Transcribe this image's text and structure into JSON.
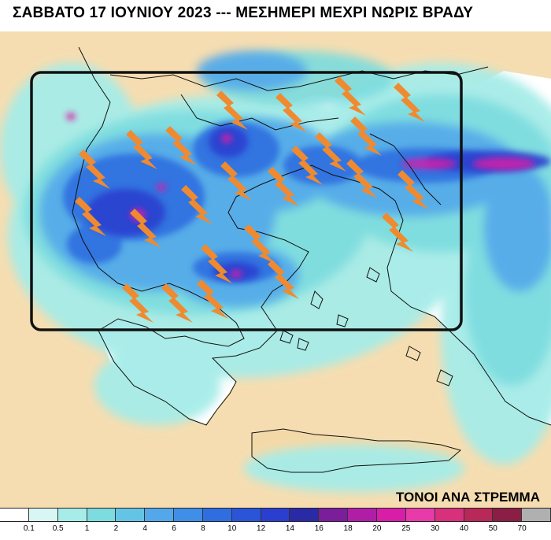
{
  "title": "ΣΑΒΒΑΤΟ 17 ΙΟΥΝΙΟΥ 2023 --- ΜΕΣΗΜΕΡΙ ΜΕΧΡΙ ΝΩΡΙΣ ΒΡΑΔΥ",
  "legend": {
    "title": "ΤΟΝΟΙ ΑΝΑ ΣΤΡΕΜΜΑ",
    "labels": [
      "0.1",
      "0.5",
      "1",
      "2",
      "4",
      "6",
      "8",
      "10",
      "12",
      "14",
      "16",
      "18",
      "20",
      "25",
      "30",
      "40",
      "50",
      "70"
    ],
    "colors": [
      "#ffffff",
      "#d8f6f4",
      "#a6ece8",
      "#7cdcde",
      "#64c4e6",
      "#52a8ea",
      "#3f8ee8",
      "#2f6ee0",
      "#2a55d8",
      "#2a3fcf",
      "#2a2aa6",
      "#7a1e9c",
      "#b01ea8",
      "#d81ea8",
      "#e83aa8",
      "#d8307a",
      "#b82858",
      "#8a1e44",
      "#b0b0b0"
    ]
  },
  "map": {
    "region": "Greece and surrounding area",
    "lightning_icon": "lightning-bolt-icon",
    "colors": {
      "land": "#f4d9a8",
      "sea": "#ffffff",
      "coastline": "#111111",
      "frame": "#111111",
      "lightning": "#f08a30",
      "rain_light": "#a6ece8",
      "rain_medium": "#52a8ea",
      "rain_heavy": "#2a3fcf",
      "rain_extreme": "#d81ea8"
    }
  }
}
